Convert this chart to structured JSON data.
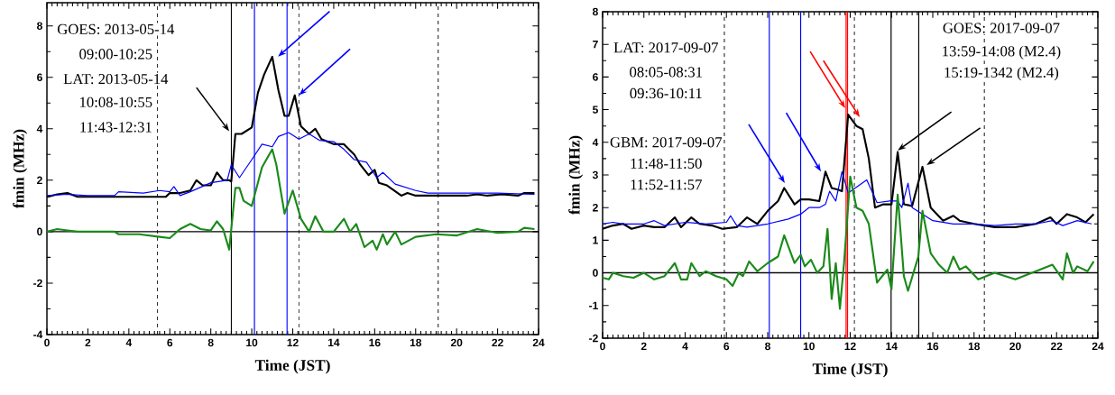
{
  "chart_data": [
    {
      "type": "line",
      "xlabel": "Time (JST)",
      "ylabel": "fmin (MHz)",
      "xlim": [
        0,
        24
      ],
      "ylim": [
        -4,
        8.9
      ],
      "xticks": [
        0,
        2,
        4,
        6,
        8,
        10,
        12,
        14,
        16,
        18,
        20,
        22,
        24
      ],
      "yticks": [
        -4,
        -2,
        0,
        2,
        4,
        6,
        8
      ],
      "grid": false,
      "marker": "none",
      "line_style": "solid",
      "series": [
        {
          "color": "#000000",
          "x": [
            0,
            0.5,
            1,
            1.5,
            2,
            5.8,
            6,
            6.5,
            7,
            7.3,
            7.6,
            8,
            8.3,
            8.6,
            8.9,
            9.0,
            9.2,
            9.5,
            10,
            10.3,
            10.6,
            11.0,
            11.3,
            11.6,
            11.8,
            12.1,
            12.4,
            12.8,
            13.1,
            13.4,
            14,
            14.5,
            15,
            15.3,
            15.7,
            16,
            16.2,
            16.6,
            17.3,
            17.6,
            18,
            20.5,
            21,
            21.5,
            22.2,
            23,
            23.3,
            23.8
          ],
          "values": [
            1.35,
            1.45,
            1.5,
            1.35,
            1.35,
            1.35,
            1.5,
            1.5,
            1.6,
            2.0,
            1.8,
            1.8,
            2.3,
            2.0,
            2.0,
            1.95,
            3.8,
            3.8,
            4.05,
            5.4,
            6.1,
            6.8,
            5.5,
            4.5,
            4.5,
            5.3,
            4.1,
            3.8,
            4.0,
            3.6,
            3.4,
            3.4,
            3.0,
            2.6,
            2.2,
            2.4,
            1.9,
            1.8,
            1.4,
            1.5,
            1.4,
            1.4,
            1.45,
            1.4,
            1.45,
            1.4,
            1.5,
            1.5
          ]
        },
        {
          "color": "#0000ff",
          "x": [
            0,
            1,
            2,
            3.3,
            3.5,
            4.7,
            5.5,
            6,
            6.2,
            6.5,
            7,
            8,
            8.8,
            9.0,
            9.4,
            10,
            10.5,
            11.0,
            11.3,
            11.8,
            12.3,
            12.8,
            13.3,
            14,
            14.5,
            15,
            15.6,
            16.1,
            16.4,
            17,
            18,
            18.6,
            20,
            22,
            23.8
          ],
          "values": [
            1.4,
            1.45,
            1.4,
            1.4,
            1.55,
            1.5,
            1.6,
            1.55,
            1.75,
            1.4,
            1.55,
            1.9,
            2.0,
            2.6,
            2.1,
            2.8,
            3.4,
            3.3,
            3.7,
            3.85,
            3.6,
            3.8,
            3.55,
            3.5,
            3.2,
            2.8,
            2.7,
            2.1,
            2.3,
            1.85,
            1.6,
            1.5,
            1.5,
            1.5,
            1.45
          ]
        },
        {
          "color": "#1a8a1a",
          "x": [
            0,
            0.5,
            1,
            1.5,
            3.3,
            3.5,
            4.5,
            5.5,
            6,
            6.5,
            7,
            7.5,
            8,
            8.3,
            8.6,
            8.9,
            9.2,
            9.4,
            9.6,
            10,
            10.5,
            11.0,
            11.2,
            11.6,
            12.0,
            12.4,
            12.8,
            13.1,
            13.5,
            14,
            14.5,
            14.8,
            15.1,
            15.5,
            15.9,
            16.1,
            16.4,
            16.6,
            17,
            17.3,
            18,
            19,
            20,
            21,
            22,
            23,
            23.3,
            23.8
          ],
          "values": [
            0.0,
            0.1,
            0.05,
            0.0,
            0.0,
            -0.1,
            -0.1,
            -0.2,
            -0.25,
            0.1,
            0.3,
            0.1,
            0.05,
            0.4,
            0.1,
            -0.7,
            1.7,
            1.7,
            1.2,
            1.0,
            2.5,
            3.2,
            2.6,
            0.7,
            1.6,
            0.5,
            0.0,
            0.6,
            0.0,
            0.0,
            0.5,
            0.0,
            0.3,
            -0.6,
            -0.35,
            -0.7,
            -0.1,
            -0.5,
            0.0,
            -0.5,
            -0.2,
            -0.1,
            -0.15,
            0.1,
            -0.05,
            0.0,
            0.15,
            0.1
          ]
        }
      ],
      "ref_lines": [
        {
          "axis": "y",
          "value": 0,
          "color": "#000000",
          "line_style": "solid"
        },
        {
          "axis": "x",
          "value": 5.4,
          "color": "#000000",
          "line_style": "dashed"
        },
        {
          "axis": "x",
          "value": 12.3,
          "color": "#000000",
          "line_style": "dashed"
        },
        {
          "axis": "x",
          "value": 19.1,
          "color": "#000000",
          "line_style": "dashed"
        },
        {
          "axis": "x",
          "value": 9.0,
          "color": "#000000",
          "line_style": "solid"
        },
        {
          "axis": "x",
          "value": 10.13,
          "color": "#0000ff",
          "line_style": "solid"
        },
        {
          "axis": "x",
          "value": 11.72,
          "color": "#0000ff",
          "line_style": "solid"
        }
      ],
      "annotations": [
        "GOES: 2013-05-14",
        "09:00-10:25",
        "LAT: 2013-05-14",
        "10:08-10:55",
        "11:43-12:31"
      ]
    },
    {
      "type": "line",
      "xlabel": "Time (JST)",
      "ylabel": "fmin (MHz)",
      "xlim": [
        0,
        24
      ],
      "ylim": [
        -2,
        8
      ],
      "xticks": [
        0,
        2,
        4,
        6,
        8,
        10,
        12,
        14,
        16,
        18,
        20,
        22,
        24
      ],
      "yticks": [
        -2,
        -1,
        0,
        1,
        2,
        3,
        4,
        5,
        6,
        7,
        8
      ],
      "grid": false,
      "marker": "none",
      "line_style": "solid",
      "series": [
        {
          "color": "#000000",
          "x": [
            0,
            0.5,
            1,
            1.4,
            2,
            2.5,
            3,
            3.5,
            3.8,
            4.3,
            4.7,
            5.3,
            5.8,
            6.5,
            7,
            7.5,
            8,
            8.5,
            8.8,
            9.3,
            9.6,
            10,
            10.5,
            10.8,
            11.1,
            11.4,
            11.6,
            11.9,
            12.3,
            12.6,
            12.9,
            13.2,
            13.6,
            14.0,
            14.3,
            14.6,
            15.0,
            15.5,
            15.9,
            16.5,
            17.0,
            17.3,
            18,
            19,
            20,
            21,
            21.7,
            22,
            22.5,
            23,
            23.4,
            23.8
          ],
          "values": [
            1.35,
            1.45,
            1.5,
            1.35,
            1.45,
            1.4,
            1.4,
            1.7,
            1.4,
            1.7,
            1.5,
            1.45,
            1.35,
            1.4,
            1.7,
            1.5,
            1.9,
            2.2,
            2.6,
            2.1,
            2.25,
            2.25,
            2.2,
            3.1,
            2.6,
            2.55,
            2.5,
            4.85,
            4.5,
            4.4,
            3.5,
            2.0,
            2.1,
            2.1,
            3.7,
            2.1,
            2.05,
            3.25,
            2.0,
            1.6,
            1.75,
            1.6,
            1.5,
            1.4,
            1.4,
            1.5,
            1.7,
            1.5,
            1.8,
            1.7,
            1.55,
            1.8
          ]
        },
        {
          "color": "#0000ff",
          "x": [
            0,
            0.5,
            1,
            2,
            2.5,
            3,
            4,
            5,
            6,
            6.2,
            6.5,
            7,
            8,
            9,
            9.6,
            10,
            10.5,
            10.8,
            11.0,
            11.3,
            11.6,
            11.9,
            12.8,
            13.3,
            13.9,
            14.3,
            14.5,
            14.8,
            15.0,
            16,
            17,
            18,
            19,
            20,
            21,
            21.8,
            22.3,
            23,
            23.7
          ],
          "values": [
            1.5,
            1.55,
            1.5,
            1.5,
            1.6,
            1.45,
            1.55,
            1.5,
            1.55,
            1.75,
            1.45,
            1.4,
            1.5,
            1.65,
            1.8,
            2.0,
            2.0,
            2.1,
            2.5,
            2.2,
            3.1,
            2.45,
            2.85,
            2.15,
            2.2,
            2.2,
            2.0,
            2.75,
            2.0,
            1.6,
            1.5,
            1.5,
            1.45,
            1.5,
            1.5,
            1.6,
            1.45,
            1.6,
            1.5
          ]
        },
        {
          "color": "#1a8a1a",
          "x": [
            0,
            0.3,
            0.5,
            1,
            1.5,
            2,
            2.5,
            3,
            3.5,
            3.8,
            4.1,
            4.3,
            4.7,
            5,
            5.5,
            6,
            6.3,
            6.6,
            6.8,
            7.1,
            7.5,
            8,
            8.5,
            8.8,
            9.3,
            9.6,
            9.8,
            10.1,
            10.4,
            10.7,
            10.9,
            11.1,
            11.3,
            11.5,
            11.7,
            12.0,
            12.3,
            12.6,
            12.9,
            13.3,
            13.8,
            14.0,
            14.3,
            14.6,
            14.8,
            15.3,
            15.5,
            15.9,
            16.3,
            16.7,
            17.0,
            17.3,
            17.6,
            18.2,
            19,
            20,
            21,
            21.8,
            22.3,
            22.5,
            22.8,
            23,
            23.5,
            23.8
          ],
          "values": [
            -0.15,
            -0.2,
            0.0,
            -0.1,
            -0.15,
            0.0,
            -0.2,
            -0.1,
            0.3,
            -0.2,
            -0.2,
            0.3,
            -0.1,
            0.05,
            -0.1,
            -0.2,
            -0.4,
            0.0,
            -0.1,
            0.35,
            0.05,
            0.3,
            0.5,
            1.15,
            0.3,
            0.55,
            0.2,
            0.4,
            0.0,
            0.2,
            1.35,
            -0.8,
            0.3,
            -1.1,
            0.3,
            2.95,
            2.0,
            1.9,
            1.5,
            -0.3,
            0.1,
            -0.5,
            2.4,
            -0.1,
            -0.55,
            0.5,
            1.9,
            0.6,
            0.25,
            0.0,
            0.5,
            0.1,
            0.2,
            -0.2,
            0.0,
            -0.2,
            0.05,
            0.25,
            -0.2,
            0.6,
            0.0,
            0.2,
            0.05,
            0.35
          ]
        }
      ],
      "ref_lines": [
        {
          "axis": "y",
          "value": 0,
          "color": "#000000",
          "line_style": "solid"
        },
        {
          "axis": "x",
          "value": 5.9,
          "color": "#000000",
          "line_style": "dashed"
        },
        {
          "axis": "x",
          "value": 12.2,
          "color": "#000000",
          "line_style": "dashed"
        },
        {
          "axis": "x",
          "value": 18.5,
          "color": "#000000",
          "line_style": "dashed"
        },
        {
          "axis": "x",
          "value": 8.08,
          "color": "#0000ff",
          "line_style": "solid"
        },
        {
          "axis": "x",
          "value": 9.6,
          "color": "#0000ff",
          "line_style": "solid"
        },
        {
          "axis": "x",
          "value": 11.8,
          "color": "#ff0000",
          "line_style": "solid"
        },
        {
          "axis": "x",
          "value": 11.87,
          "color": "#ff0000",
          "line_style": "solid"
        },
        {
          "axis": "x",
          "value": 13.98,
          "color": "#000000",
          "line_style": "solid"
        },
        {
          "axis": "x",
          "value": 15.32,
          "color": "#000000",
          "line_style": "solid"
        }
      ],
      "annotations": [
        "LAT: 2017-09-07",
        "08:05-08:31",
        "09:36-10:11",
        "GBM: 2017-09-07",
        "11:48-11:50",
        "11:52-11:57",
        "GOES: 2017-09-07",
        "13:59-14:08 (M2.4)",
        "15:19-1342 (M2.4)"
      ]
    }
  ]
}
